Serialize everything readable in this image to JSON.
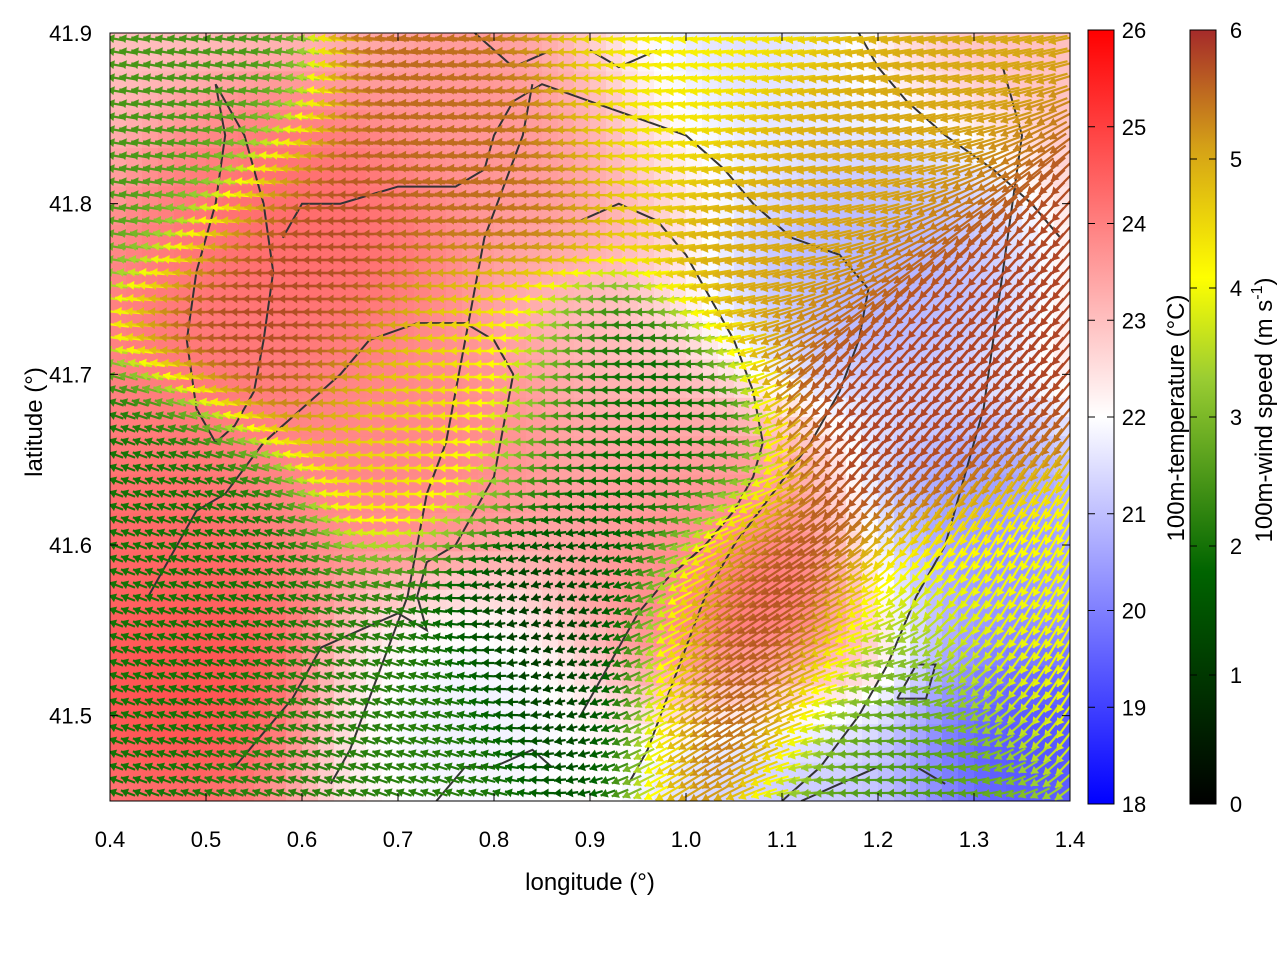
{
  "chart_data": {
    "type": "heatmap",
    "title": "",
    "xlabel": "longitude (°)",
    "ylabel": "latitude (°)",
    "xlim": [
      0.4,
      1.4
    ],
    "ylim": [
      41.45,
      41.9
    ],
    "x_ticks": [
      "0.4",
      "0.5",
      "0.6",
      "0.7",
      "0.8",
      "0.9",
      "1.0",
      "1.1",
      "1.2",
      "1.3",
      "1.4"
    ],
    "x_tick_values": [
      0.4,
      0.5,
      0.6,
      0.7,
      0.8,
      0.9,
      1.0,
      1.1,
      1.2,
      1.3,
      1.4
    ],
    "y_ticks": [
      "41.5",
      "41.6",
      "41.7",
      "41.8",
      "41.9"
    ],
    "y_tick_values": [
      41.5,
      41.6,
      41.7,
      41.8,
      41.9
    ],
    "grid": false,
    "layers": [
      "temperature field (color map)",
      "wind vectors (arrows colored by speed)",
      "coastline/terrain contours"
    ],
    "temperature_colorbar": {
      "label": "100m-temperature (°C)",
      "range": [
        18,
        26
      ],
      "ticks": [
        "18",
        "19",
        "20",
        "21",
        "22",
        "23",
        "24",
        "25",
        "26"
      ],
      "tick_values": [
        18,
        19,
        20,
        21,
        22,
        23,
        24,
        25,
        26
      ],
      "colors": [
        "#0000ff",
        "#ffffff",
        "#ff0000"
      ]
    },
    "wind_colorbar": {
      "label": "100m-wind speed (m s",
      "label_sup": "-1",
      "label_end": ")",
      "range": [
        0,
        6
      ],
      "ticks": [
        "0",
        "1",
        "2",
        "3",
        "4",
        "5",
        "6"
      ],
      "tick_values": [
        0,
        1,
        2,
        3,
        4,
        5,
        6
      ],
      "colors": [
        "#000000",
        "#006400",
        "#ffff00",
        "#d4a017",
        "#a52a2a"
      ]
    },
    "temperature_hotspots": [
      {
        "lon": 0.47,
        "lat": 41.52,
        "t": 25.0
      },
      {
        "lon": 0.6,
        "lat": 41.78,
        "t": 24.5
      },
      {
        "lon": 0.5,
        "lat": 41.72,
        "t": 24.2
      },
      {
        "lon": 0.7,
        "lat": 41.65,
        "t": 24.0
      },
      {
        "lon": 0.42,
        "lat": 41.6,
        "t": 24.5
      },
      {
        "lon": 0.85,
        "lat": 41.86,
        "t": 23.8
      },
      {
        "lon": 1.08,
        "lat": 41.56,
        "t": 24.8
      },
      {
        "lon": 1.0,
        "lat": 41.6,
        "t": 23.5
      },
      {
        "lon": 1.2,
        "lat": 41.76,
        "t": 20.5
      },
      {
        "lon": 1.37,
        "lat": 41.48,
        "t": 18.8
      },
      {
        "lon": 1.3,
        "lat": 41.6,
        "t": 20.0
      },
      {
        "lon": 1.02,
        "lat": 41.89,
        "t": 21.2
      },
      {
        "lon": 0.77,
        "lat": 41.5,
        "t": 21.6
      },
      {
        "lon": 1.1,
        "lat": 41.47,
        "t": 20.8
      }
    ],
    "temperature_background": 23.0,
    "wind_regions": [
      {
        "lon": 0.46,
        "lat": 41.6,
        "speed": 2.0,
        "dir_deg": 160
      },
      {
        "lon": 0.6,
        "lat": 41.75,
        "speed": 5.8,
        "dir_deg": 180
      },
      {
        "lon": 0.75,
        "lat": 41.68,
        "speed": 4.5,
        "dir_deg": 180
      },
      {
        "lon": 0.8,
        "lat": 41.85,
        "speed": 5.5,
        "dir_deg": 175
      },
      {
        "lon": 0.92,
        "lat": 41.65,
        "speed": 1.8,
        "dir_deg": 180
      },
      {
        "lon": 0.88,
        "lat": 41.55,
        "speed": 0.8,
        "dir_deg": 200
      },
      {
        "lon": 1.05,
        "lat": 41.54,
        "speed": 5.9,
        "dir_deg": 215
      },
      {
        "lon": 1.25,
        "lat": 41.7,
        "speed": 5.8,
        "dir_deg": 230
      },
      {
        "lon": 1.12,
        "lat": 41.8,
        "speed": 5.0,
        "dir_deg": 190
      },
      {
        "lon": 0.98,
        "lat": 41.88,
        "speed": 4.2,
        "dir_deg": 185
      },
      {
        "lon": 1.35,
        "lat": 41.55,
        "speed": 4.0,
        "dir_deg": 240
      },
      {
        "lon": 0.72,
        "lat": 41.5,
        "speed": 2.2,
        "dir_deg": 160
      },
      {
        "lon": 1.22,
        "lat": 41.48,
        "speed": 2.5,
        "dir_deg": 180
      },
      {
        "lon": 0.45,
        "lat": 41.85,
        "speed": 2.5,
        "dir_deg": 170
      }
    ],
    "contours": [
      [
        [
          0.44,
          41.57
        ],
        [
          0.47,
          41.6
        ],
        [
          0.49,
          41.62
        ],
        [
          0.52,
          41.63
        ],
        [
          0.56,
          41.66
        ],
        [
          0.6,
          41.68
        ],
        [
          0.64,
          41.7
        ],
        [
          0.67,
          41.72
        ],
        [
          0.72,
          41.73
        ],
        [
          0.77,
          41.73
        ],
        [
          0.8,
          41.72
        ],
        [
          0.82,
          41.7
        ],
        [
          0.81,
          41.67
        ],
        [
          0.8,
          41.64
        ],
        [
          0.78,
          41.62
        ],
        [
          0.76,
          41.6
        ],
        [
          0.73,
          41.59
        ],
        [
          0.72,
          41.57
        ],
        [
          0.73,
          41.55
        ],
        [
          0.7,
          41.56
        ],
        [
          0.66,
          41.55
        ],
        [
          0.62,
          41.54
        ],
        [
          0.59,
          41.51
        ],
        [
          0.56,
          41.49
        ],
        [
          0.53,
          41.47
        ]
      ],
      [
        [
          0.51,
          41.66
        ],
        [
          0.49,
          41.68
        ],
        [
          0.48,
          41.72
        ],
        [
          0.49,
          41.76
        ],
        [
          0.51,
          41.8
        ],
        [
          0.52,
          41.84
        ],
        [
          0.51,
          41.87
        ],
        [
          0.54,
          41.84
        ],
        [
          0.56,
          41.8
        ],
        [
          0.57,
          41.76
        ],
        [
          0.56,
          41.72
        ],
        [
          0.55,
          41.69
        ],
        [
          0.53,
          41.67
        ],
        [
          0.51,
          41.66
        ]
      ],
      [
        [
          0.58,
          41.78
        ],
        [
          0.6,
          41.8
        ],
        [
          0.64,
          41.8
        ],
        [
          0.7,
          41.81
        ],
        [
          0.76,
          41.81
        ],
        [
          0.79,
          41.82
        ],
        [
          0.8,
          41.84
        ],
        [
          0.82,
          41.86
        ],
        [
          0.85,
          41.87
        ],
        [
          0.9,
          41.86
        ],
        [
          0.95,
          41.85
        ],
        [
          1.0,
          41.84
        ],
        [
          1.04,
          41.82
        ],
        [
          1.07,
          41.8
        ],
        [
          1.11,
          41.78
        ],
        [
          1.16,
          41.77
        ],
        [
          1.19,
          41.75
        ],
        [
          1.18,
          41.72
        ],
        [
          1.16,
          41.69
        ],
        [
          1.13,
          41.66
        ],
        [
          1.09,
          41.63
        ],
        [
          1.05,
          41.6
        ],
        [
          1.02,
          41.57
        ],
        [
          1.0,
          41.54
        ],
        [
          0.98,
          41.51
        ],
        [
          0.96,
          41.48
        ],
        [
          0.94,
          41.46
        ]
      ],
      [
        [
          0.89,
          41.79
        ],
        [
          0.93,
          41.8
        ],
        [
          0.97,
          41.79
        ],
        [
          1.0,
          41.77
        ],
        [
          1.03,
          41.74
        ],
        [
          1.05,
          41.72
        ],
        [
          1.07,
          41.69
        ],
        [
          1.08,
          41.66
        ],
        [
          1.07,
          41.64
        ],
        [
          1.05,
          41.62
        ],
        [
          1.02,
          41.6
        ],
        [
          0.98,
          41.58
        ],
        [
          0.95,
          41.56
        ],
        [
          0.92,
          41.53
        ],
        [
          0.89,
          41.5
        ]
      ],
      [
        [
          0.84,
          41.87
        ],
        [
          0.83,
          41.84
        ],
        [
          0.81,
          41.81
        ],
        [
          0.79,
          41.78
        ],
        [
          0.78,
          41.75
        ],
        [
          0.77,
          41.72
        ],
        [
          0.76,
          41.69
        ],
        [
          0.75,
          41.66
        ],
        [
          0.73,
          41.63
        ],
        [
          0.72,
          41.6
        ],
        [
          0.71,
          41.57
        ],
        [
          0.69,
          41.54
        ],
        [
          0.67,
          41.51
        ],
        [
          0.65,
          41.48
        ],
        [
          0.63,
          41.46
        ]
      ],
      [
        [
          1.18,
          41.9
        ],
        [
          1.2,
          41.88
        ],
        [
          1.23,
          41.86
        ],
        [
          1.27,
          41.84
        ],
        [
          1.32,
          41.82
        ],
        [
          1.36,
          41.8
        ],
        [
          1.39,
          41.78
        ]
      ],
      [
        [
          1.33,
          41.88
        ],
        [
          1.35,
          41.84
        ],
        [
          1.34,
          41.8
        ],
        [
          1.33,
          41.76
        ],
        [
          1.32,
          41.72
        ],
        [
          1.31,
          41.68
        ],
        [
          1.29,
          41.64
        ],
        [
          1.27,
          41.6
        ],
        [
          1.24,
          41.57
        ],
        [
          1.21,
          41.53
        ],
        [
          1.18,
          41.5
        ],
        [
          1.14,
          41.47
        ],
        [
          1.1,
          41.45
        ]
      ],
      [
        [
          1.22,
          41.51
        ],
        [
          1.24,
          41.53
        ],
        [
          1.26,
          41.53
        ],
        [
          1.25,
          41.51
        ],
        [
          1.22,
          41.51
        ]
      ],
      [
        [
          1.12,
          41.45
        ],
        [
          1.16,
          41.46
        ],
        [
          1.2,
          41.47
        ],
        [
          1.24,
          41.47
        ],
        [
          1.27,
          41.46
        ]
      ],
      [
        [
          0.74,
          41.45
        ],
        [
          0.77,
          41.47
        ],
        [
          0.8,
          41.47
        ],
        [
          0.84,
          41.48
        ],
        [
          0.86,
          41.47
        ]
      ],
      [
        [
          0.78,
          41.9
        ],
        [
          0.82,
          41.88
        ],
        [
          0.86,
          41.89
        ]
      ],
      [
        [
          0.9,
          41.89
        ],
        [
          0.93,
          41.88
        ],
        [
          0.97,
          41.89
        ]
      ]
    ]
  }
}
